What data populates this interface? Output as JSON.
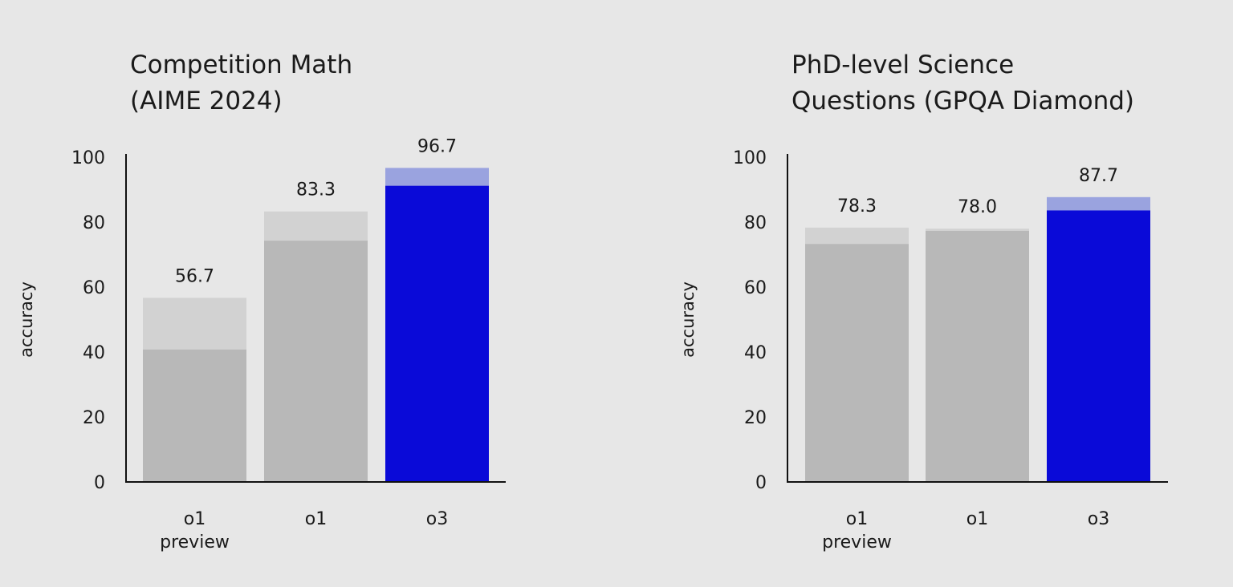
{
  "chart_data": [
    {
      "type": "bar",
      "title_lines": [
        "Competition Math",
        "(AIME 2024)"
      ],
      "ylabel": "accuracy",
      "ylim": [
        0,
        100
      ],
      "yticks": [
        0,
        20,
        40,
        60,
        80,
        100
      ],
      "categories": [
        [
          "o1",
          "preview"
        ],
        [
          "o1"
        ],
        [
          "o3"
        ]
      ],
      "values": [
        56.7,
        83.3,
        96.7
      ],
      "value_labels": [
        "56.7",
        "83.3",
        "96.7"
      ],
      "base_values": [
        40.8,
        74.3,
        91.2
      ],
      "highlight_index": 2
    },
    {
      "type": "bar",
      "title_lines": [
        "PhD-level Science",
        "Questions (GPQA Diamond)"
      ],
      "ylabel": "accuracy",
      "ylim": [
        0,
        100
      ],
      "yticks": [
        0,
        20,
        40,
        60,
        80,
        100
      ],
      "categories": [
        [
          "o1",
          "preview"
        ],
        [
          "o1"
        ],
        [
          "o3"
        ]
      ],
      "values": [
        78.3,
        78.0,
        87.7
      ],
      "value_labels": [
        "78.3",
        "78.0",
        "87.7"
      ],
      "base_values": [
        73.3,
        77.3,
        83.6
      ],
      "highlight_index": 2
    }
  ],
  "colors": {
    "background": "#e7e7e7",
    "gray_base": "#b8b8b8",
    "gray_top": "#d2d2d2",
    "blue_base": "#0a0ad8",
    "blue_top": "#9aa3df",
    "axis": "#111111"
  }
}
